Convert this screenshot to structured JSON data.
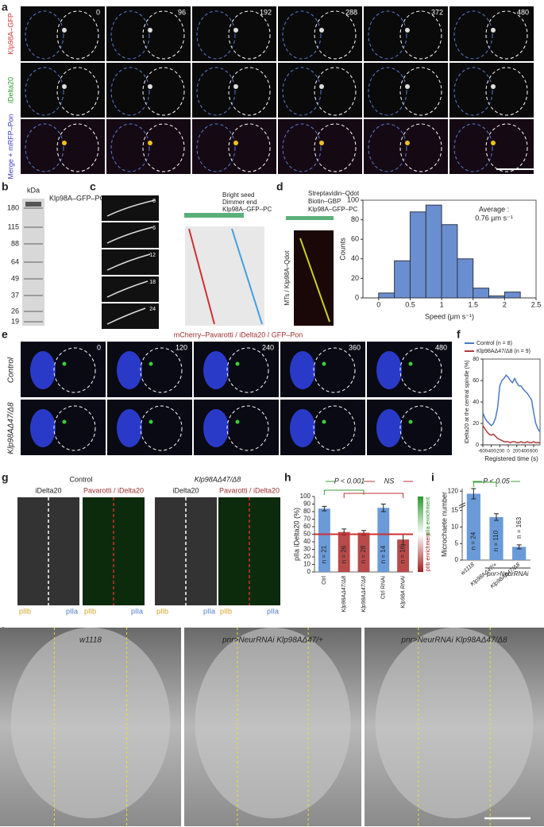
{
  "panel_labels": [
    "a",
    "b",
    "c",
    "d",
    "e",
    "f",
    "g",
    "h",
    "i",
    "j"
  ],
  "a": {
    "rows": [
      "Klp98A–GFP",
      "iDelta20",
      "Merge + mRFP–Pon"
    ],
    "times": [
      0,
      96,
      192,
      288,
      372,
      480
    ]
  },
  "b": {
    "unit": "kDa",
    "markers": [
      180,
      115,
      88,
      64,
      49,
      37,
      26,
      19
    ],
    "band_label": "Klp98A–GFP–PC"
  },
  "c": {
    "times": [
      0,
      6,
      12,
      18,
      24
    ],
    "labels": [
      "Bright seed",
      "Dimmer end",
      "Klp98A–GFP–PC"
    ]
  },
  "d": {
    "labels": [
      "Streptavidin–Qdot",
      "Biotin–GBP",
      "Klp98A–GFP–PC"
    ],
    "kymo_label": "MTs / Klp98A–Qdot"
  },
  "e": {
    "title": "mCherry–Pavarotti / iDelta20 / GFP–Pon",
    "rows": [
      "Control",
      "Klp98AΔ47/Δ8"
    ],
    "times": [
      0,
      120,
      240,
      360,
      480
    ]
  },
  "g": {
    "groups": [
      {
        "title": "Control",
        "channels": [
          "iDelta20",
          "Pavarotti / iDelta20"
        ]
      },
      {
        "title": "Klp98AΔ47/Δ8",
        "channels": [
          "iDelta20",
          "Pavarotti / iDelta20"
        ]
      }
    ],
    "cell_labels": [
      "pIIb",
      "pIIa"
    ]
  },
  "j": {
    "panels": [
      "w1118",
      "pnr>NeurRNAi Klp98AΔ47/+",
      "pnr>NeurRNAi Klp98AΔ47/Δ8"
    ]
  },
  "chart_data": [
    {
      "type": "histogram",
      "bins": [
        0,
        0.25,
        0.5,
        0.75,
        1,
        1.25,
        1.5,
        1.75,
        2,
        2.25
      ],
      "values": [
        5,
        38,
        88,
        95,
        75,
        40,
        10,
        2,
        6
      ],
      "color": "#6a8fd0",
      "xlim": [
        -0.25,
        2.5
      ],
      "xticks": [
        0,
        0.5,
        1,
        1.5,
        2,
        2.5
      ],
      "ylim": [
        0,
        100
      ],
      "yticks": [
        0,
        20,
        40,
        60,
        80,
        100
      ],
      "xlabel": "Speed (µm s⁻¹)",
      "ylabel": "Counts",
      "annotation": [
        "Average :",
        "0.76 µm s⁻¹"
      ]
    },
    {
      "type": "line",
      "x": [
        -600,
        -550,
        -500,
        -450,
        -400,
        -350,
        -300,
        -250,
        -200,
        -150,
        -100,
        -50,
        0,
        50,
        100,
        150,
        200,
        250,
        300,
        350,
        400,
        450,
        500,
        550,
        600,
        650,
        700,
        750
      ],
      "series": [
        {
          "name": "Control (n = 8)",
          "color": "#4a78c8",
          "values": [
            30,
            25,
            22,
            20,
            18,
            20,
            25,
            35,
            55,
            60,
            62,
            65,
            63,
            60,
            58,
            62,
            58,
            55,
            55,
            52,
            50,
            48,
            45,
            42,
            30,
            20,
            15,
            12
          ]
        },
        {
          "name": "Klp98AΔ47/Δ8 (n = 9)",
          "color": "#b03a3a",
          "values": [
            18,
            15,
            12,
            10,
            9,
            10,
            8,
            6,
            5,
            4,
            3,
            3,
            3,
            2,
            3,
            3,
            2,
            2,
            3,
            2,
            2,
            3,
            2,
            2,
            3,
            2,
            2,
            2
          ]
        }
      ],
      "xlim": [
        -600,
        750
      ],
      "xticks": [
        -600,
        -400,
        -200,
        0,
        200,
        400,
        600
      ],
      "ylim": [
        0,
        80
      ],
      "yticks": [
        0,
        20,
        40,
        60,
        80
      ],
      "xlabel": "Registered time (s)",
      "ylabel": "iDelta20 at the central spindle (%)"
    },
    {
      "type": "bar",
      "categories": [
        "Ctrl",
        "Klp98AΔ47/Δ8",
        "Klp98AΔ47/Δ8",
        "Ctrl RNAi",
        "Klp98A RNAi"
      ],
      "values": [
        84,
        53,
        52,
        85,
        43
      ],
      "errors": [
        3,
        4,
        3,
        5,
        7
      ],
      "colors": [
        "#6a9ad8",
        "#b84a4a",
        "#b84a4a",
        "#6a9ad8",
        "#b84a4a"
      ],
      "n_labels": [
        "n = 21",
        "n = 26",
        "n = 28",
        "n = 14",
        "n = 16"
      ],
      "ylim": [
        0,
        100
      ],
      "yticks": [
        0,
        10,
        20,
        30,
        40,
        50,
        60,
        70,
        80,
        90,
        100
      ],
      "ylabel": "pIIa iDelta20 (%)",
      "hline": 50,
      "hline_color": "#d03030",
      "brackets": [
        "P < 0.001",
        "NS"
      ],
      "side_labels": [
        "pIIa enrichment",
        "pIIb enrichment"
      ]
    },
    {
      "type": "bar",
      "categories": [
        "w1118",
        "Klp98AΔ47/+",
        "Klp98AΔ47/Δ8"
      ],
      "values": [
        119,
        13,
        4
      ],
      "errors": [
        2,
        1,
        0.6
      ],
      "colors": [
        "#6a9ad8",
        "#6a9ad8",
        "#6a9ad8"
      ],
      "n_labels": [
        "n = 24",
        "n = 110",
        "n = 163"
      ],
      "ylim": [
        0,
        121
      ],
      "yticks": [
        0,
        5,
        10,
        15,
        120
      ],
      "axis_break": [
        16,
        116
      ],
      "ylabel": "Microchaete number",
      "group_label": "pnr>NeurRNAi",
      "brackets": [
        "P < 0.05"
      ]
    }
  ]
}
